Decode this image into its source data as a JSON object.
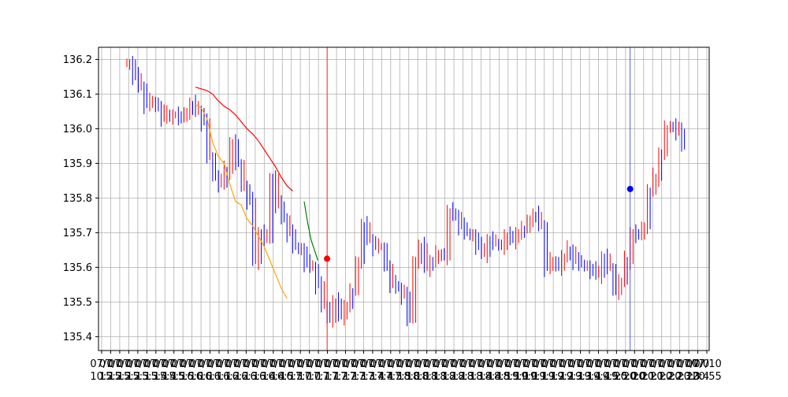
{
  "chart_data": {
    "type": "candlestick",
    "title": "",
    "xlabel": "",
    "ylabel": "",
    "ylim": [
      135.36,
      136.235
    ],
    "yticks": [
      135.4,
      135.5,
      135.6,
      135.7,
      135.8,
      135.9,
      136.0,
      136.1,
      136.2
    ],
    "ytick_labels": [
      "135.4",
      "135.5",
      "135.6",
      "135.7",
      "135.8",
      "135.9",
      "136.0",
      "136.1",
      "136.2"
    ],
    "grid": true,
    "x_tick_labels_row1": [
      "07/0",
      "07/0",
      "07/0",
      "07/0",
      "07/0",
      "07/0",
      "07/0",
      "07/0",
      "07/0",
      "07/0",
      "07/0",
      "07/0",
      "07/0",
      "07/0",
      "07/0",
      "07/0",
      "07/0",
      "07/0",
      "07/0",
      "07/0",
      "07/0",
      "07/0",
      "07/0",
      "07/0",
      "07/0",
      "07/0",
      "07/0",
      "07/0",
      "07/0",
      "07/0",
      "07/0",
      "07/0",
      "07/0",
      "07/0",
      "07/0",
      "07/0",
      "07/0",
      "07/0",
      "07/0",
      "07/0",
      "07/0",
      "07/0",
      "07/0",
      "07/0",
      "07/0",
      "07/0",
      "07/0",
      "07/0",
      "07/0",
      "07/0",
      "07/0",
      "07/0",
      "07/0",
      "07/0",
      "07/0",
      "07/0",
      "07/0",
      "07/0",
      "07/0",
      "07/0",
      "07/0",
      "07/0",
      "07/0",
      "07/0",
      "07/0",
      "07/0",
      "07/0",
      "07/10"
    ],
    "x_tick_labels_row2": [
      "10:2",
      "15:2",
      "15:2",
      "15:2",
      "15:3",
      "15:3",
      "15:4",
      "15:4",
      "15:5",
      "15:5",
      "16:0",
      "16:0",
      "16:1",
      "16:1",
      "16:2",
      "16:2",
      "16:3",
      "16:3",
      "16:4",
      "16:4",
      "16:5",
      "16:5",
      "17:0",
      "17:0",
      "17:1",
      "17:1",
      "17:2",
      "17:2",
      "17:3",
      "17:3",
      "17:4",
      "17:4",
      "17:5",
      "17:5",
      "18:0",
      "18:0",
      "18:1",
      "18:1",
      "18:2",
      "18:2",
      "18:3",
      "18:3",
      "18:4",
      "18:4",
      "18:5",
      "18:5",
      "19:0",
      "19:0",
      "19:1",
      "19:1",
      "19:2",
      "19:2",
      "19:3",
      "19:3",
      "19:4",
      "19:4",
      "19:5",
      "19:5",
      "20:0",
      "20:0",
      "20:1",
      "20:1",
      "20:2",
      "20:2",
      "20:3",
      "20:3",
      "20:4",
      "20:55"
    ],
    "candles_sampled_close": [
      136.19,
      136.15,
      136.12,
      136.07,
      136.08,
      136.06,
      136.03,
      136.04,
      136.04,
      136.03,
      136.05,
      136.07,
      136.05,
      136.02,
      135.92,
      135.86,
      135.84,
      135.88,
      135.96,
      135.9,
      135.83,
      135.79,
      135.62,
      135.7,
      135.68,
      135.86,
      135.78,
      135.74,
      135.7,
      135.66,
      135.65,
      135.61,
      135.6,
      135.55,
      135.49,
      135.45,
      135.5,
      135.46,
      135.49,
      135.53,
      135.62,
      135.72,
      135.68,
      135.66,
      135.66,
      135.6,
      135.55,
      135.54,
      135.52,
      135.45,
      135.62,
      135.66,
      135.6,
      135.62,
      135.64,
      135.63,
      135.76,
      135.75,
      135.72,
      135.7,
      135.69,
      135.66,
      135.64,
      135.68,
      135.67,
      135.66,
      135.69,
      135.68,
      135.7,
      135.71,
      135.74,
      135.75,
      135.72,
      135.6,
      135.62,
      135.6,
      135.63,
      135.65,
      135.62,
      135.61,
      135.6,
      135.59,
      135.58,
      135.63,
      135.6,
      135.53,
      135.56,
      135.62,
      135.7,
      135.69,
      135.72,
      135.82,
      135.86,
      135.93,
      136.0,
      136.01,
      135.99,
      135.95
    ],
    "series": [
      {
        "name": "",
        "color": "#ff0000",
        "x_start_index": 12,
        "values": [
          136.12,
          136.115,
          136.11,
          136.1,
          136.08,
          136.065,
          136.055,
          136.04,
          136.02,
          136.0,
          135.985,
          135.965,
          135.94,
          135.915,
          135.89,
          135.86,
          135.835,
          135.82
        ]
      },
      {
        "name": "",
        "color": "#ffa500",
        "x_start_index": 12,
        "values": [
          136.07,
          136.06,
          136.03,
          135.96,
          135.92,
          135.9,
          135.84,
          135.79,
          135.78,
          135.74,
          135.72,
          135.69,
          135.66,
          135.62,
          135.58,
          135.54,
          135.51
        ]
      },
      {
        "name": "",
        "color": "#008000",
        "x_start_index": 31,
        "values": [
          135.79,
          135.73,
          135.68,
          135.65,
          135.62
        ]
      }
    ],
    "vertical_markers": [
      {
        "color": "#ff0000",
        "x_index": 35
      },
      {
        "color": "#0000ff",
        "x_index": 88
      }
    ],
    "points": [
      {
        "color": "#ff0000",
        "x_index": 35,
        "y": 135.625
      },
      {
        "color": "#0000ff",
        "x_index": 88,
        "y": 135.826
      }
    ]
  }
}
